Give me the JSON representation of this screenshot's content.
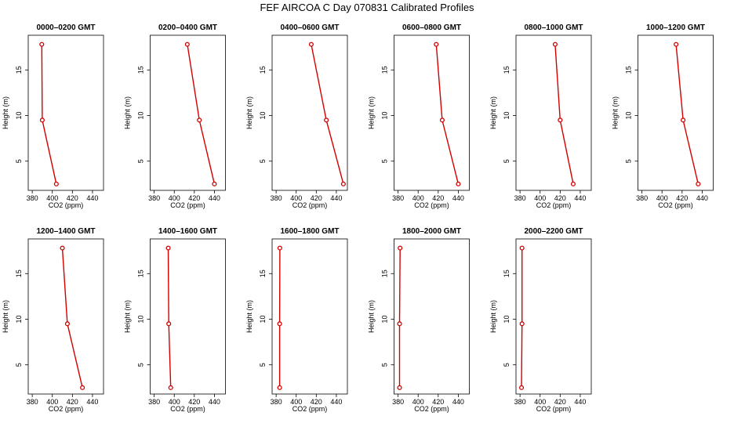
{
  "chart_data": {
    "type": "line",
    "title": "FEF AIRCOA C  Day 070831  Calibrated Profiles",
    "xlabel": "CO2 (ppm)",
    "ylabel": "Height (m)",
    "xlim": [
      376,
      451
    ],
    "ylim": [
      1.8,
      18.8
    ],
    "xticks": [
      380,
      400,
      420,
      440
    ],
    "yticks": [
      5,
      10,
      15
    ],
    "heights": [
      2.5,
      9.5,
      17.8
    ],
    "series_color": "#d40000",
    "panels": [
      {
        "name": "0000–0200 GMT",
        "co2": [
          404.0,
          390.0,
          389.5
        ]
      },
      {
        "name": "0200–0400 GMT",
        "co2": [
          440.0,
          425.0,
          413.0
        ]
      },
      {
        "name": "0400–0600 GMT",
        "co2": [
          447.0,
          430.0,
          415.0
        ]
      },
      {
        "name": "0600–0800 GMT",
        "co2": [
          440.0,
          424.0,
          418.0
        ]
      },
      {
        "name": "0800–1000 GMT",
        "co2": [
          433.0,
          420.0,
          415.0
        ]
      },
      {
        "name": "1000–1200 GMT",
        "co2": [
          436.0,
          421.0,
          414.0
        ]
      },
      {
        "name": "1200–1400 GMT",
        "co2": [
          430.0,
          415.0,
          410.0
        ]
      },
      {
        "name": "1400–1600 GMT",
        "co2": [
          396.5,
          394.5,
          394.0
        ]
      },
      {
        "name": "1600–1800 GMT",
        "co2": [
          383.5,
          383.5,
          383.7
        ]
      },
      {
        "name": "1800–2000 GMT",
        "co2": [
          381.5,
          381.5,
          382.0
        ]
      },
      {
        "name": "2000–2200 GMT",
        "co2": [
          381.5,
          382.0,
          382.0
        ]
      }
    ]
  }
}
